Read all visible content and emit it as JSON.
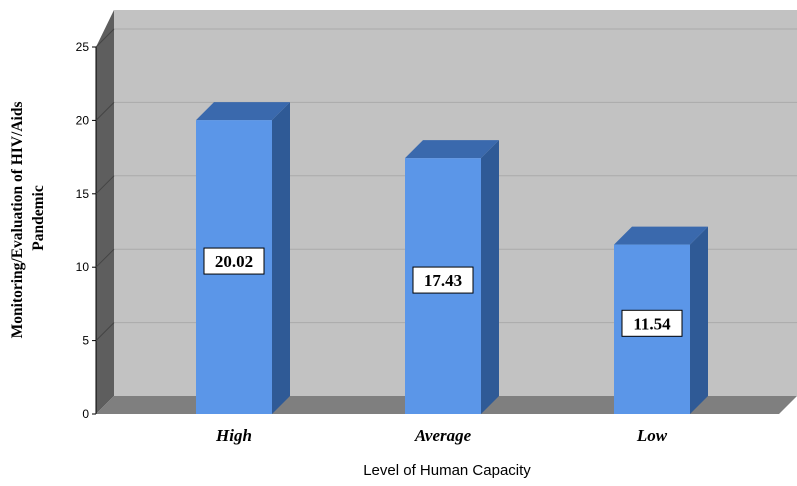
{
  "chart_data": {
    "type": "bar",
    "categories": [
      "High",
      "Average",
      "Low"
    ],
    "values": [
      20.02,
      17.43,
      11.54
    ],
    "data_labels": [
      "20.02",
      "17.43",
      "11.54"
    ],
    "xlabel": "Level of Human Capacity",
    "ylabel_lines": [
      "Monitoring/Evaluation of HIV/Aids",
      "Pandemic"
    ],
    "ylim": [
      0,
      25
    ],
    "yticks": [
      "0",
      "5",
      "10",
      "15",
      "20",
      "25"
    ],
    "grid": true,
    "style": "3d",
    "colors": {
      "bar_front": "#5b96e8",
      "bar_side": "#2f5a96",
      "bar_top": "#3a69ad",
      "plot_back": "#c2c2c2",
      "plot_floor": "#7f7f7f",
      "plot_wall": "#5e5e5e",
      "gridline": "#aaaaaa"
    }
  }
}
